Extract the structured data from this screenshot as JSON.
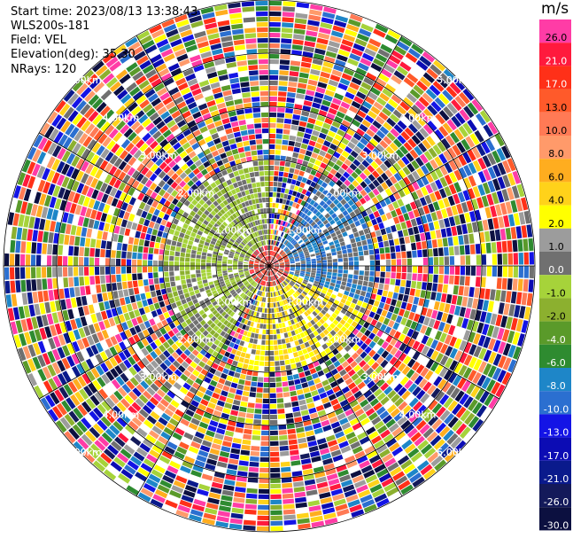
{
  "header": {
    "start_time": "Start time: 2023/08/13 13:38:43",
    "radar": "WLS200s-181",
    "field": "Field: VEL",
    "elevation": "Elevation(deg): 35.30",
    "nrays": "NRays: 120"
  },
  "colorbar": {
    "unit": "m/s",
    "levels": [
      {
        "label": "26.0",
        "color": "#ff3ca6"
      },
      {
        "label": "21.0",
        "color": "#ff1a3d"
      },
      {
        "label": "17.0",
        "color": "#ff3018"
      },
      {
        "label": "13.0",
        "color": "#ff5a2a"
      },
      {
        "label": "10.0",
        "color": "#ff7a55"
      },
      {
        "label": "8.0",
        "color": "#ff9a6a"
      },
      {
        "label": "6.0",
        "color": "#ffad1f"
      },
      {
        "label": "4.0",
        "color": "#ffd21a"
      },
      {
        "label": "2.0",
        "color": "#ffff00"
      },
      {
        "label": "1.0",
        "color": "#9c9c9c"
      },
      {
        "label": "0.0",
        "color": "#707070"
      },
      {
        "label": "-1.0",
        "color": "#a6d33a"
      },
      {
        "label": "-2.0",
        "color": "#8cb02f"
      },
      {
        "label": "-4.0",
        "color": "#5a9a2a"
      },
      {
        "label": "-6.0",
        "color": "#2e8b30"
      },
      {
        "label": "-8.0",
        "color": "#1e86c8"
      },
      {
        "label": "-10.0",
        "color": "#2b6fd0"
      },
      {
        "label": "-13.0",
        "color": "#1414e6"
      },
      {
        "label": "-17.0",
        "color": "#0c0cb4"
      },
      {
        "label": "-21.0",
        "color": "#0a1a8c"
      },
      {
        "label": "-26.0",
        "color": "#141a5a"
      },
      {
        "label": "-30.0",
        "color": "#0c1040"
      }
    ]
  },
  "range_labels": [
    "1.00km",
    "2.00km",
    "3.00km",
    "4.00km",
    "5.00km"
  ],
  "chart_data": {
    "type": "heatmap",
    "projection": "polar (PPI)",
    "field": "VEL",
    "unit": "m/s",
    "range_rings_km": [
      1,
      2,
      3,
      4,
      5
    ],
    "nrays": 120,
    "max_range_km": 5.0,
    "color_scale": [
      -30.0,
      -26.0,
      -21.0,
      -17.0,
      -13.0,
      -10.0,
      -8.0,
      -6.0,
      -4.0,
      -2.0,
      -1.0,
      0.0,
      1.0,
      2.0,
      4.0,
      6.0,
      8.0,
      10.0,
      13.0,
      17.0,
      21.0,
      26.0
    ],
    "regions": [
      {
        "range_km": [
          0,
          0.4
        ],
        "azimuth_deg": [
          0,
          360
        ],
        "dominant_values": [
          21.0,
          17.0,
          13.0,
          0.0
        ]
      },
      {
        "range_km": [
          0.4,
          2.0
        ],
        "azimuth_deg": [
          210,
          360
        ],
        "dominant_values": [
          -1.0,
          -2.0,
          0.0
        ]
      },
      {
        "range_km": [
          0.4,
          2.0
        ],
        "azimuth_deg": [
          30,
          110
        ],
        "dominant_values": [
          -8.0,
          -10.0,
          0.0
        ]
      },
      {
        "range_km": [
          0.4,
          2.0
        ],
        "azimuth_deg": [
          90,
          200
        ],
        "dominant_values": [
          2.0,
          4.0,
          0.0
        ]
      },
      {
        "range_km": [
          2.0,
          5.0
        ],
        "azimuth_deg": [
          0,
          360
        ],
        "dominant_values": "mixed (noise)"
      }
    ]
  }
}
